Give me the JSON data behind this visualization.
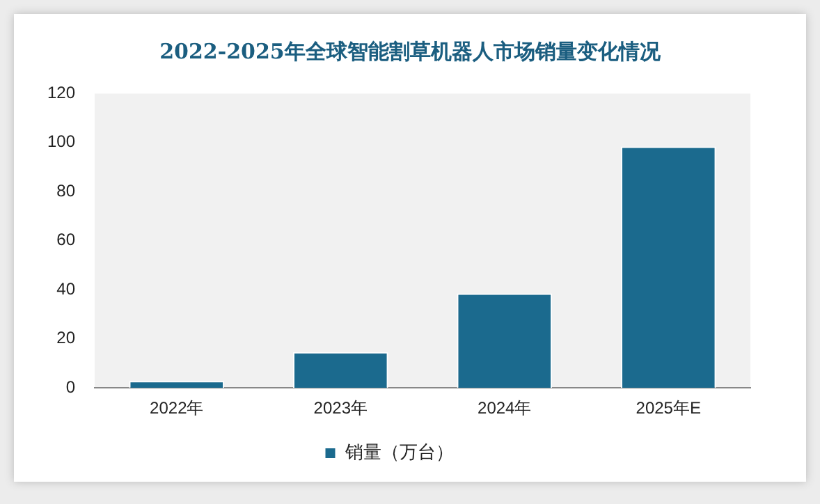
{
  "chart_data": {
    "type": "bar",
    "title": "2022-2025年全球智能割草机器人市场销量变化情况",
    "categories": [
      "2022年",
      "2023年",
      "2024年",
      "2025年E"
    ],
    "series": [
      {
        "name": "销量（万台）",
        "color": "#1b6a8e",
        "values": [
          2.8,
          14.6,
          38.5,
          98.4
        ]
      }
    ],
    "ylim": [
      0,
      120
    ],
    "yticks": [
      0,
      20,
      40,
      60,
      80,
      100,
      120
    ],
    "grid": false,
    "legend": "bottom"
  }
}
